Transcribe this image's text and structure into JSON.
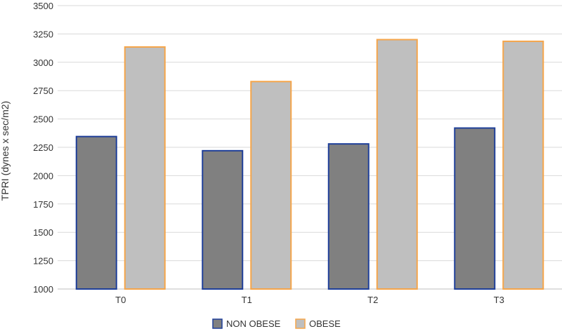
{
  "chart_data": {
    "type": "bar",
    "categories": [
      "T0",
      "T1",
      "T2",
      "T3"
    ],
    "series": [
      {
        "name": "NON OBESE",
        "values": [
          2345,
          2220,
          2280,
          2420
        ],
        "fill": "#808080",
        "stroke": "#1f3f99"
      },
      {
        "name": "OBESE",
        "values": [
          3135,
          2830,
          3200,
          3185
        ],
        "fill": "#bfbfbf",
        "stroke": "#f5a54a"
      }
    ],
    "ylabel": "TPRI (dynes x sec/m2)",
    "xlabel": "",
    "ylim": [
      1000,
      3500
    ],
    "yticks": [
      1000,
      1250,
      1500,
      1750,
      2000,
      2250,
      2500,
      2750,
      3000,
      3250,
      3500
    ],
    "grid": true,
    "legend_position": "bottom-center"
  }
}
